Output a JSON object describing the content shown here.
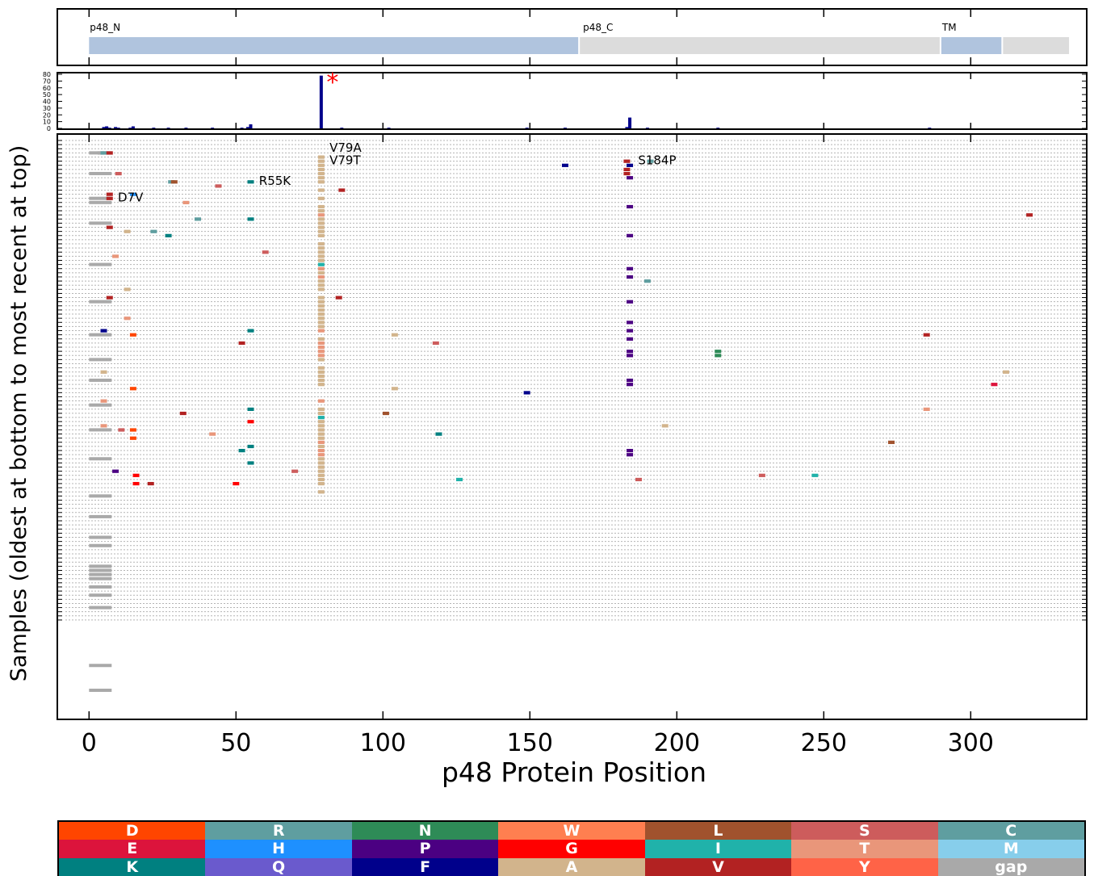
{
  "chart_data": [
    {
      "type": "domain-map",
      "domains": [
        {
          "label": "p48_N",
          "start": 0,
          "end": 167,
          "color": "#b0c4de"
        },
        {
          "label": "",
          "start": 167,
          "end": 290,
          "color": "#dcdcdc"
        },
        {
          "label": "TM",
          "start": 290,
          "end": 311,
          "color": "#b0c4de"
        },
        {
          "label": "",
          "start": 311,
          "end": 334,
          "color": "#dcdcdc"
        }
      ],
      "extra_labels": [
        {
          "label": "p48_C",
          "pos": 167
        }
      ]
    },
    {
      "type": "bar",
      "ylim": [
        0,
        80
      ],
      "yticks": [
        "0",
        "10",
        "20",
        "30",
        "40",
        "50",
        "60",
        "70",
        "80"
      ],
      "positions": [
        5,
        6,
        7,
        9,
        10,
        14,
        15,
        22,
        27,
        33,
        42,
        52,
        54,
        55,
        79,
        86,
        102,
        149,
        162,
        183,
        184,
        190,
        214,
        286
      ],
      "values": [
        2,
        3,
        1,
        2,
        1,
        1,
        3,
        1,
        1,
        1,
        1,
        1,
        2,
        6,
        78,
        1,
        1,
        1,
        1,
        2,
        16,
        1,
        1,
        1
      ],
      "marker": {
        "text": "*",
        "pos": 79,
        "color": "#ff0000"
      }
    },
    {
      "type": "scatter",
      "xlabel": "p48 Protein Position",
      "ylabel": "Samples (oldest at bottom to most recent at top)",
      "xlim": [
        -10,
        338
      ],
      "xticks": [
        "0",
        "50",
        "100",
        "150",
        "200",
        "250",
        "300"
      ],
      "rows": 117,
      "annotations": [
        {
          "text": "V79A",
          "pos": 81,
          "row": 2
        },
        {
          "text": "V79T",
          "pos": 81,
          "row": 5
        },
        {
          "text": "S184P",
          "pos": 186,
          "row": 5
        },
        {
          "text": "R55K",
          "pos": 57,
          "row": 10
        },
        {
          "text": "D7V",
          "pos": 9,
          "row": 14
        }
      ],
      "gap_rows": [
        3,
        8,
        14,
        15,
        20,
        30,
        39,
        47,
        53,
        58,
        64,
        70,
        77,
        86,
        91,
        96,
        98,
        103,
        104,
        105,
        106,
        108,
        110,
        113,
        127,
        133
      ],
      "mutations": [
        {
          "row": 3,
          "pos": 4,
          "c": "gap"
        },
        {
          "row": 3,
          "pos": 5,
          "c": "R"
        },
        {
          "row": 3,
          "pos": 7,
          "c": "V"
        },
        {
          "row": 4,
          "pos": 79,
          "c": "A"
        },
        {
          "row": 5,
          "pos": 79,
          "c": "A"
        },
        {
          "row": 5,
          "pos": 183,
          "c": "V"
        },
        {
          "row": 5,
          "pos": 191,
          "c": "R"
        },
        {
          "row": 6,
          "pos": 162,
          "c": "F"
        },
        {
          "row": 6,
          "pos": 79,
          "c": "A"
        },
        {
          "row": 6,
          "pos": 184,
          "c": "F"
        },
        {
          "row": 7,
          "pos": 79,
          "c": "A"
        },
        {
          "row": 7,
          "pos": 183,
          "c": "V"
        },
        {
          "row": 8,
          "pos": 79,
          "c": "A"
        },
        {
          "row": 8,
          "pos": 183,
          "c": "V"
        },
        {
          "row": 8,
          "pos": 10,
          "c": "S"
        },
        {
          "row": 9,
          "pos": 79,
          "c": "A"
        },
        {
          "row": 9,
          "pos": 184,
          "c": "P"
        },
        {
          "row": 10,
          "pos": 28,
          "c": "R"
        },
        {
          "row": 10,
          "pos": 29,
          "c": "L"
        },
        {
          "row": 10,
          "pos": 55,
          "c": "K"
        },
        {
          "row": 10,
          "pos": 79,
          "c": "A"
        },
        {
          "row": 11,
          "pos": 44,
          "c": "S"
        },
        {
          "row": 12,
          "pos": 79,
          "c": "A"
        },
        {
          "row": 12,
          "pos": 86,
          "c": "V"
        },
        {
          "row": 13,
          "pos": 7,
          "c": "V"
        },
        {
          "row": 13,
          "pos": 15,
          "c": "H"
        },
        {
          "row": 14,
          "pos": 7,
          "c": "V"
        },
        {
          "row": 14,
          "pos": 79,
          "c": "A"
        },
        {
          "row": 15,
          "pos": 33,
          "c": "T"
        },
        {
          "row": 16,
          "pos": 79,
          "c": "A"
        },
        {
          "row": 16,
          "pos": 184,
          "c": "P"
        },
        {
          "row": 17,
          "pos": 79,
          "c": "A"
        },
        {
          "row": 18,
          "pos": 79,
          "c": "T"
        },
        {
          "row": 18,
          "pos": 320,
          "c": "V"
        },
        {
          "row": 19,
          "pos": 37,
          "c": "R"
        },
        {
          "row": 19,
          "pos": 55,
          "c": "K"
        },
        {
          "row": 19,
          "pos": 79,
          "c": "A"
        },
        {
          "row": 20,
          "pos": 79,
          "c": "A"
        },
        {
          "row": 21,
          "pos": 7,
          "c": "V"
        },
        {
          "row": 21,
          "pos": 79,
          "c": "A"
        },
        {
          "row": 22,
          "pos": 13,
          "c": "A"
        },
        {
          "row": 22,
          "pos": 22,
          "c": "R"
        },
        {
          "row": 22,
          "pos": 79,
          "c": "A"
        },
        {
          "row": 23,
          "pos": 27,
          "c": "K"
        },
        {
          "row": 23,
          "pos": 79,
          "c": "A"
        },
        {
          "row": 23,
          "pos": 184,
          "c": "P"
        },
        {
          "row": 25,
          "pos": 79,
          "c": "A"
        },
        {
          "row": 26,
          "pos": 79,
          "c": "A"
        },
        {
          "row": 27,
          "pos": 60,
          "c": "S"
        },
        {
          "row": 27,
          "pos": 79,
          "c": "A"
        },
        {
          "row": 28,
          "pos": 9,
          "c": "T"
        },
        {
          "row": 28,
          "pos": 79,
          "c": "A"
        },
        {
          "row": 29,
          "pos": 79,
          "c": "A"
        },
        {
          "row": 30,
          "pos": 79,
          "c": "I"
        },
        {
          "row": 31,
          "pos": 79,
          "c": "T"
        },
        {
          "row": 31,
          "pos": 184,
          "c": "P"
        },
        {
          "row": 32,
          "pos": 79,
          "c": "A"
        },
        {
          "row": 33,
          "pos": 79,
          "c": "T"
        },
        {
          "row": 33,
          "pos": 184,
          "c": "P"
        },
        {
          "row": 34,
          "pos": 79,
          "c": "A"
        },
        {
          "row": 34,
          "pos": 190,
          "c": "R"
        },
        {
          "row": 35,
          "pos": 79,
          "c": "A"
        },
        {
          "row": 36,
          "pos": 13,
          "c": "A"
        },
        {
          "row": 36,
          "pos": 79,
          "c": "A"
        },
        {
          "row": 38,
          "pos": 7,
          "c": "V"
        },
        {
          "row": 38,
          "pos": 79,
          "c": "A"
        },
        {
          "row": 38,
          "pos": 85,
          "c": "V"
        },
        {
          "row": 39,
          "pos": 79,
          "c": "A"
        },
        {
          "row": 39,
          "pos": 184,
          "c": "P"
        },
        {
          "row": 40,
          "pos": 79,
          "c": "A"
        },
        {
          "row": 41,
          "pos": 79,
          "c": "A"
        },
        {
          "row": 42,
          "pos": 79,
          "c": "A"
        },
        {
          "row": 43,
          "pos": 13,
          "c": "T"
        },
        {
          "row": 43,
          "pos": 79,
          "c": "A"
        },
        {
          "row": 44,
          "pos": 79,
          "c": "A"
        },
        {
          "row": 44,
          "pos": 184,
          "c": "P"
        },
        {
          "row": 45,
          "pos": 79,
          "c": "A"
        },
        {
          "row": 46,
          "pos": 5,
          "c": "F"
        },
        {
          "row": 46,
          "pos": 55,
          "c": "K"
        },
        {
          "row": 46,
          "pos": 79,
          "c": "T"
        },
        {
          "row": 46,
          "pos": 184,
          "c": "P"
        },
        {
          "row": 47,
          "pos": 15,
          "c": "D"
        },
        {
          "row": 47,
          "pos": 104,
          "c": "A"
        },
        {
          "row": 47,
          "pos": 285,
          "c": "V"
        },
        {
          "row": 48,
          "pos": 79,
          "c": "A"
        },
        {
          "row": 48,
          "pos": 184,
          "c": "P"
        },
        {
          "row": 49,
          "pos": 52,
          "c": "V"
        },
        {
          "row": 49,
          "pos": 79,
          "c": "T"
        },
        {
          "row": 49,
          "pos": 118,
          "c": "S"
        },
        {
          "row": 50,
          "pos": 79,
          "c": "T"
        },
        {
          "row": 51,
          "pos": 79,
          "c": "T"
        },
        {
          "row": 51,
          "pos": 184,
          "c": "P"
        },
        {
          "row": 51,
          "pos": 214,
          "c": "N"
        },
        {
          "row": 52,
          "pos": 79,
          "c": "T"
        },
        {
          "row": 52,
          "pos": 184,
          "c": "P"
        },
        {
          "row": 52,
          "pos": 214,
          "c": "N"
        },
        {
          "row": 53,
          "pos": 79,
          "c": "A"
        },
        {
          "row": 55,
          "pos": 79,
          "c": "A"
        },
        {
          "row": 56,
          "pos": 5,
          "c": "A"
        },
        {
          "row": 56,
          "pos": 79,
          "c": "A"
        },
        {
          "row": 56,
          "pos": 312,
          "c": "A"
        },
        {
          "row": 57,
          "pos": 79,
          "c": "A"
        },
        {
          "row": 58,
          "pos": 79,
          "c": "A"
        },
        {
          "row": 58,
          "pos": 184,
          "c": "P"
        },
        {
          "row": 59,
          "pos": 79,
          "c": "A"
        },
        {
          "row": 59,
          "pos": 184,
          "c": "P"
        },
        {
          "row": 59,
          "pos": 308,
          "c": "E"
        },
        {
          "row": 60,
          "pos": 15,
          "c": "D"
        },
        {
          "row": 60,
          "pos": 104,
          "c": "A"
        },
        {
          "row": 61,
          "pos": 149,
          "c": "F"
        },
        {
          "row": 63,
          "pos": 5,
          "c": "T"
        },
        {
          "row": 63,
          "pos": 79,
          "c": "T"
        },
        {
          "row": 65,
          "pos": 55,
          "c": "K"
        },
        {
          "row": 65,
          "pos": 79,
          "c": "A"
        },
        {
          "row": 65,
          "pos": 285,
          "c": "T"
        },
        {
          "row": 66,
          "pos": 32,
          "c": "V"
        },
        {
          "row": 66,
          "pos": 79,
          "c": "A"
        },
        {
          "row": 66,
          "pos": 101,
          "c": "L"
        },
        {
          "row": 67,
          "pos": 79,
          "c": "I"
        },
        {
          "row": 68,
          "pos": 55,
          "c": "G"
        },
        {
          "row": 68,
          "pos": 79,
          "c": "A"
        },
        {
          "row": 69,
          "pos": 5,
          "c": "T"
        },
        {
          "row": 69,
          "pos": 79,
          "c": "A"
        },
        {
          "row": 69,
          "pos": 196,
          "c": "A"
        },
        {
          "row": 70,
          "pos": 11,
          "c": "S"
        },
        {
          "row": 70,
          "pos": 15,
          "c": "D"
        },
        {
          "row": 70,
          "pos": 79,
          "c": "A"
        },
        {
          "row": 71,
          "pos": 42,
          "c": "T"
        },
        {
          "row": 71,
          "pos": 79,
          "c": "A"
        },
        {
          "row": 71,
          "pos": 119,
          "c": "K"
        },
        {
          "row": 72,
          "pos": 15,
          "c": "D"
        },
        {
          "row": 72,
          "pos": 79,
          "c": "A"
        },
        {
          "row": 73,
          "pos": 79,
          "c": "T"
        },
        {
          "row": 73,
          "pos": 273,
          "c": "L"
        },
        {
          "row": 74,
          "pos": 55,
          "c": "K"
        },
        {
          "row": 74,
          "pos": 79,
          "c": "A"
        },
        {
          "row": 75,
          "pos": 52,
          "c": "K"
        },
        {
          "row": 75,
          "pos": 79,
          "c": "T"
        },
        {
          "row": 75,
          "pos": 184,
          "c": "P"
        },
        {
          "row": 76,
          "pos": 79,
          "c": "T"
        },
        {
          "row": 76,
          "pos": 184,
          "c": "P"
        },
        {
          "row": 77,
          "pos": 79,
          "c": "A"
        },
        {
          "row": 78,
          "pos": 55,
          "c": "K"
        },
        {
          "row": 78,
          "pos": 79,
          "c": "A"
        },
        {
          "row": 79,
          "pos": 79,
          "c": "A"
        },
        {
          "row": 80,
          "pos": 9,
          "c": "P"
        },
        {
          "row": 80,
          "pos": 70,
          "c": "S"
        },
        {
          "row": 80,
          "pos": 79,
          "c": "A"
        },
        {
          "row": 81,
          "pos": 16,
          "c": "G"
        },
        {
          "row": 81,
          "pos": 79,
          "c": "A"
        },
        {
          "row": 81,
          "pos": 229,
          "c": "S"
        },
        {
          "row": 81,
          "pos": 247,
          "c": "I"
        },
        {
          "row": 82,
          "pos": 79,
          "c": "A"
        },
        {
          "row": 82,
          "pos": 126,
          "c": "I"
        },
        {
          "row": 82,
          "pos": 187,
          "c": "S"
        },
        {
          "row": 83,
          "pos": 16,
          "c": "G"
        },
        {
          "row": 83,
          "pos": 21,
          "c": "V"
        },
        {
          "row": 83,
          "pos": 50,
          "c": "G"
        },
        {
          "row": 83,
          "pos": 79,
          "c": "A"
        },
        {
          "row": 85,
          "pos": 79,
          "c": "A"
        }
      ],
      "colors": {
        "D": "#ff4500",
        "E": "#dc143c",
        "K": "#008080",
        "R": "#5f9ea0",
        "H": "#1e90ff",
        "Q": "#6a5acd",
        "N": "#2e8b57",
        "P": "#4b0082",
        "F": "#00008b",
        "W": "#ff7f50",
        "G": "#ff0000",
        "A": "#d2b48c",
        "L": "#a0522d",
        "I": "#20b2aa",
        "V": "#b22222",
        "S": "#cd5c5c",
        "T": "#e9967a",
        "Y": "#ff6347",
        "C": "#5f9ea0",
        "M": "#87ceeb",
        "gap": "#a9a9a9"
      }
    }
  ],
  "legend": [
    {
      "label": "D",
      "color": "#ff4500"
    },
    {
      "label": "R",
      "color": "#5f9ea0"
    },
    {
      "label": "N",
      "color": "#2e8b57"
    },
    {
      "label": "W",
      "color": "#ff7f50"
    },
    {
      "label": "L",
      "color": "#a0522d"
    },
    {
      "label": "S",
      "color": "#cd5c5c"
    },
    {
      "label": "C",
      "color": "#5f9ea0"
    },
    {
      "label": "E",
      "color": "#dc143c"
    },
    {
      "label": "H",
      "color": "#1e90ff"
    },
    {
      "label": "P",
      "color": "#4b0082"
    },
    {
      "label": "G",
      "color": "#ff0000"
    },
    {
      "label": "I",
      "color": "#20b2aa"
    },
    {
      "label": "T",
      "color": "#e9967a"
    },
    {
      "label": "M",
      "color": "#87ceeb"
    },
    {
      "label": "K",
      "color": "#008080"
    },
    {
      "label": "Q",
      "color": "#6a5acd"
    },
    {
      "label": "F",
      "color": "#00008b"
    },
    {
      "label": "A",
      "color": "#d2b48c"
    },
    {
      "label": "V",
      "color": "#b22222"
    },
    {
      "label": "Y",
      "color": "#ff6347"
    },
    {
      "label": "gap",
      "color": "#a9a9a9"
    }
  ]
}
